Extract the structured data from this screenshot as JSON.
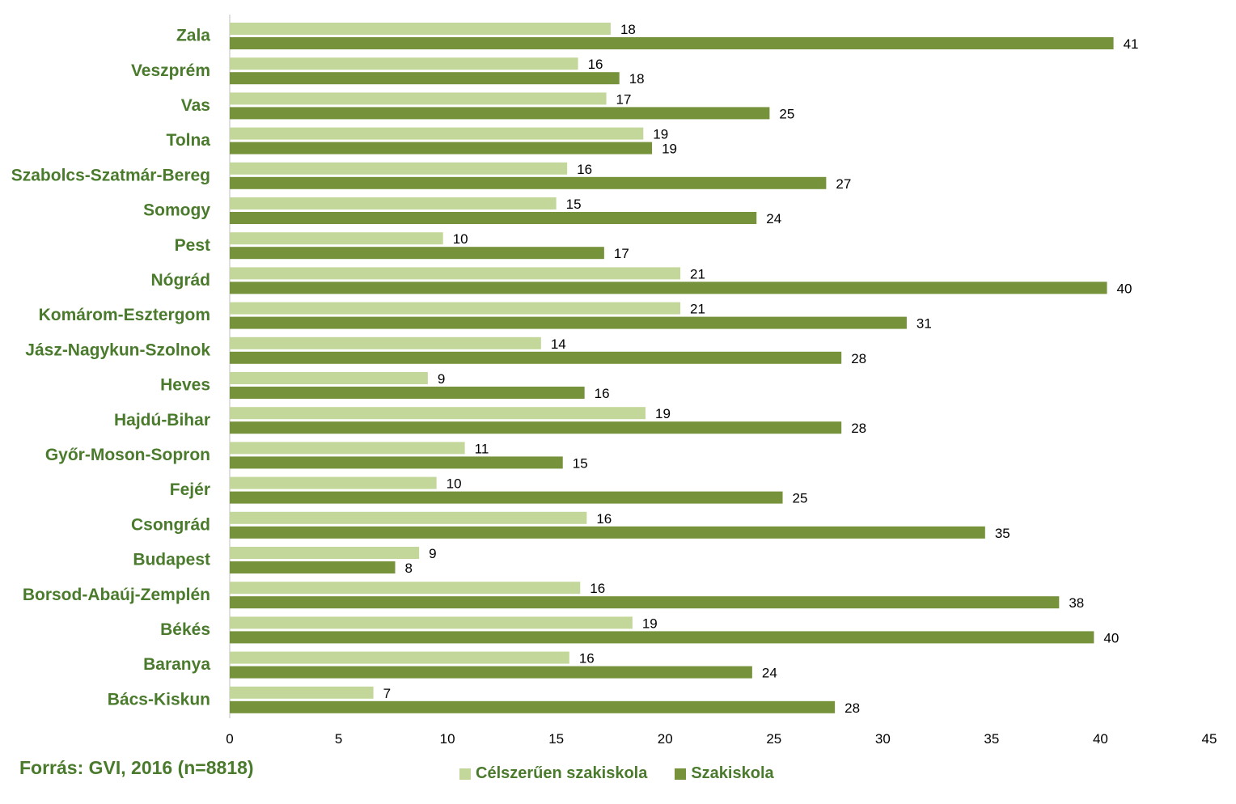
{
  "source": "Forrás: GVI, 2016 (n=8818)",
  "colors": {
    "light": "#c4d79b",
    "dark": "#76933c",
    "label": "#4a7a2c",
    "axis": "#bfbfbf"
  },
  "chart_data": {
    "type": "bar",
    "orientation": "horizontal",
    "categories": [
      "Zala",
      "Veszprém",
      "Vas",
      "Tolna",
      "Szabolcs-Szatmár-Bereg",
      "Somogy",
      "Pest",
      "Nógrád",
      "Komárom-Esztergom",
      "Jász-Nagykun-Szolnok",
      "Heves",
      "Hajdú-Bihar",
      "Győr-Moson-Sopron",
      "Fejér",
      "Csongrád",
      "Budapest",
      "Borsod-Abaúj-Zemplén",
      "Békés",
      "Baranya",
      "Bács-Kiskun"
    ],
    "series": [
      {
        "name": "Célszerűen szakiskola",
        "color": "#c4d79b",
        "values": [
          17.5,
          16,
          17.3,
          19,
          15.5,
          15,
          9.8,
          20.7,
          20.7,
          14.3,
          9.1,
          19.1,
          10.8,
          9.5,
          16.4,
          8.7,
          16.1,
          18.5,
          15.6,
          6.6
        ],
        "labels": [
          "18",
          "16",
          "17",
          "19",
          "16",
          "15",
          "10",
          "21",
          "21",
          "14",
          "9",
          "19",
          "11",
          "10",
          "16",
          "9",
          "16",
          "19",
          "16",
          "7"
        ]
      },
      {
        "name": "Szakiskola",
        "color": "#76933c",
        "values": [
          40.6,
          17.9,
          24.8,
          19.4,
          27.4,
          24.2,
          17.2,
          40.3,
          31.1,
          28.1,
          16.3,
          28.1,
          15.3,
          25.4,
          34.7,
          7.6,
          38.1,
          39.7,
          24,
          27.8
        ],
        "labels": [
          "41",
          "18",
          "25",
          "19",
          "27",
          "24",
          "17",
          "40",
          "31",
          "28",
          "16",
          "28",
          "15",
          "25",
          "35",
          "8",
          "38",
          "40",
          "24",
          "28"
        ]
      }
    ],
    "xlim": [
      0,
      45
    ],
    "ticks": [
      0,
      5,
      10,
      15,
      20,
      25,
      30,
      35,
      40,
      45
    ],
    "tick_labels": [
      "0",
      "5",
      "10",
      "15",
      "20",
      "25",
      "30",
      "35",
      "40",
      "45"
    ],
    "grid": false,
    "legend_position": "bottom"
  }
}
